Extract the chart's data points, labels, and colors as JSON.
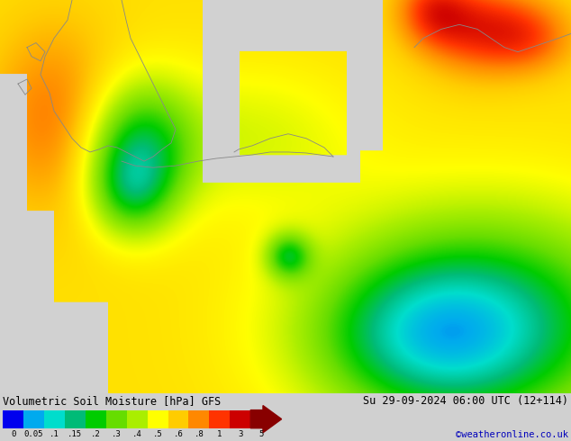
{
  "title_left": "Volumetric Soil Moisture [hPa] GFS",
  "title_right": "Su 29-09-2024 06:00 UTC (12+114)",
  "credit": "©weatheronline.co.uk",
  "colorbar_tick_labels": [
    "0",
    "0.05",
    ".1",
    ".15",
    ".2",
    ".3",
    ".4",
    ".5",
    ".6",
    ".8",
    "1",
    "3",
    "5"
  ],
  "colorbar_colors": [
    "#0000ee",
    "#00aaee",
    "#00ddcc",
    "#00bb77",
    "#00cc00",
    "#66dd00",
    "#aaee00",
    "#ffff00",
    "#ffcc00",
    "#ff8800",
    "#ff3300",
    "#cc0000",
    "#880000"
  ],
  "bg_color": "#d0d0d0",
  "sea_color": "#d0d0d0",
  "coast_color": "#888888",
  "text_color": "#000000",
  "credit_color": "#0000bb",
  "font_size_title": 8.5,
  "font_size_credit": 7.5,
  "font_size_ticks": 6.5,
  "map_colors": {
    "bright_green": "#00ee00",
    "mid_green": "#33cc00",
    "light_green": "#aaee88",
    "pale_green": "#cceeaa",
    "yellow": "#ffff00",
    "orange": "#ffaa00",
    "dark_green": "#005500"
  }
}
